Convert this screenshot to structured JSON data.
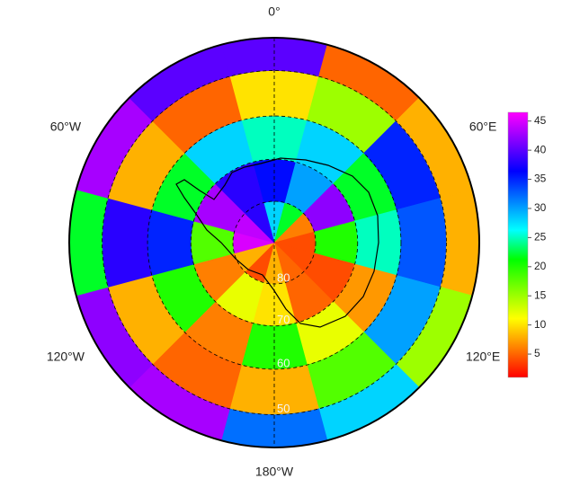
{
  "lon_labels": [
    {
      "value": 0,
      "label": "0°"
    },
    {
      "value": 60,
      "label": "60°E"
    },
    {
      "value": 120,
      "label": "120°E"
    },
    {
      "value": 180,
      "label": "180°W"
    },
    {
      "value": -120,
      "label": "120°W"
    },
    {
      "value": -60,
      "label": "60°W"
    }
  ],
  "lat_ticks": [
    80,
    70,
    60,
    50
  ],
  "field": [
    [
      28,
      22,
      6,
      4,
      4,
      5,
      8,
      4,
      8,
      45,
      44,
      38
    ],
    [
      36,
      30,
      42,
      20,
      4,
      5,
      10,
      12,
      6,
      18,
      43,
      38
    ],
    [
      25,
      28,
      22,
      25,
      7,
      12,
      20,
      6,
      20,
      35,
      22,
      28
    ],
    [
      10,
      15,
      35,
      33,
      30,
      18,
      8,
      5,
      8,
      38,
      8,
      5
    ],
    [
      40,
      5,
      8,
      8,
      15,
      28,
      32,
      43,
      42,
      22,
      43,
      40
    ]
  ],
  "colormap": [
    "#ff0000",
    "#ff8000",
    "#ffff00",
    "#80ff00",
    "#00ff00",
    "#00ffff",
    "#0080ff",
    "#0000ff",
    "#8000ff",
    "#ff00ff"
  ],
  "clim": [
    1,
    46.5
  ],
  "cbar_ticks": [
    5,
    10,
    15,
    20,
    25,
    30,
    35,
    40,
    45
  ]
}
